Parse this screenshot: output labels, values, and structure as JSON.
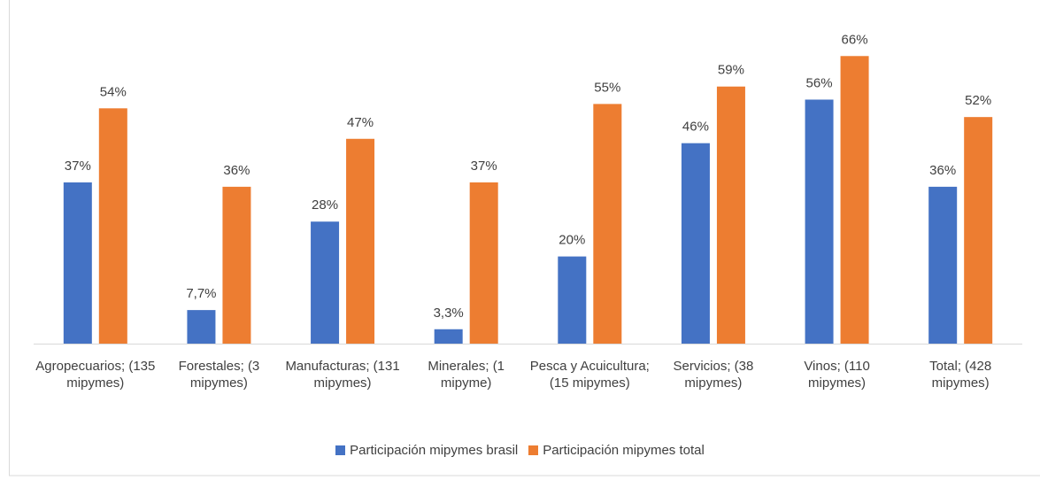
{
  "chart_data": {
    "type": "bar",
    "categories": [
      "Agropecuarios; (135 mipymes)",
      "Forestales; (3 mipymes)",
      "Manufacturas; (131 mipymes)",
      "Minerales; (1 mipyme)",
      "Pesca y Acuicultura; (15 mipymes)",
      "Servicios; (38 mipymes)",
      "Vinos; (110 mipymes)",
      "Total; (428 mipymes)"
    ],
    "series": [
      {
        "name": "Participación mipymes brasil",
        "color": "#4472c4",
        "values": [
          37,
          7.7,
          28,
          3.3,
          20,
          46,
          56,
          36
        ],
        "value_labels": [
          "37%",
          "7,7%",
          "28%",
          "3,3%",
          "20%",
          "46%",
          "56%",
          "36%"
        ]
      },
      {
        "name": "Participación mipymes total",
        "color": "#ed7d31",
        "values": [
          54,
          36,
          47,
          37,
          55,
          59,
          66,
          52
        ],
        "value_labels": [
          "54%",
          "36%",
          "47%",
          "37%",
          "55%",
          "59%",
          "66%",
          "52%"
        ]
      }
    ],
    "legend": "bottom"
  }
}
